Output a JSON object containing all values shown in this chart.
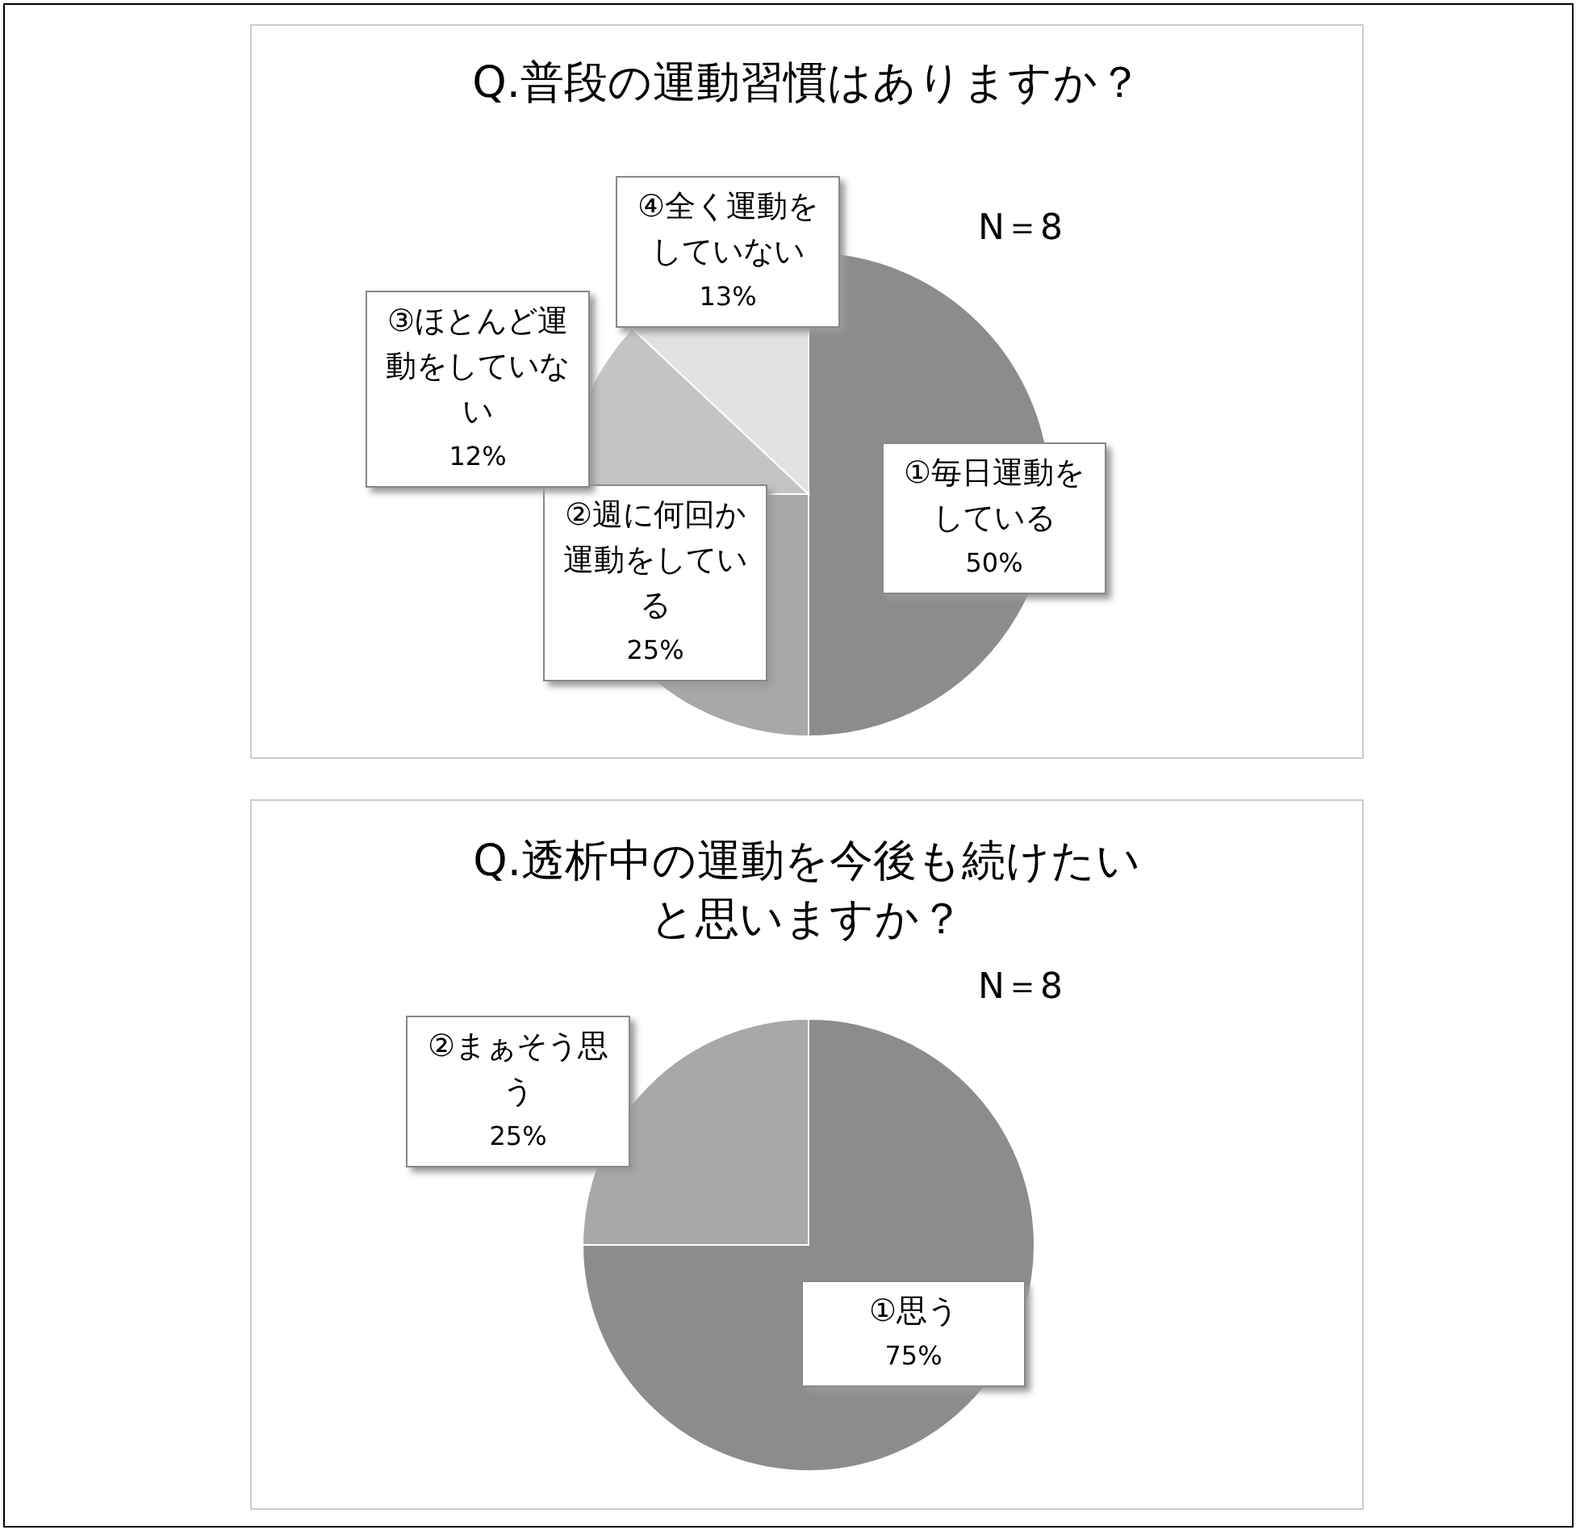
{
  "chart_data": [
    {
      "type": "pie",
      "title": "Q.普段の運動習慣はありますか？",
      "annotations": [
        "N＝8"
      ],
      "categories": [
        "①毎日運動をしている",
        "②週に何回か運動をしている",
        "③ほとんど運動をしていない",
        "④全く運動をしていない"
      ],
      "values": [
        50,
        25,
        12,
        13
      ],
      "colors": [
        "#8c8c8c",
        "#a8a8a8",
        "#c4c4c4",
        "#e2e2e2"
      ],
      "value_labels": [
        "50%",
        "25%",
        "12%",
        "13%"
      ]
    },
    {
      "type": "pie",
      "title": "Q.透析中の運動を今後も続けたいと思いますか？",
      "annotations": [
        "N＝8"
      ],
      "categories": [
        "①思う",
        "②まぁそう思う"
      ],
      "values": [
        75,
        25
      ],
      "colors": [
        "#8c8c8c",
        "#a8a8a8"
      ],
      "value_labels": [
        "75%",
        "25%"
      ]
    }
  ]
}
